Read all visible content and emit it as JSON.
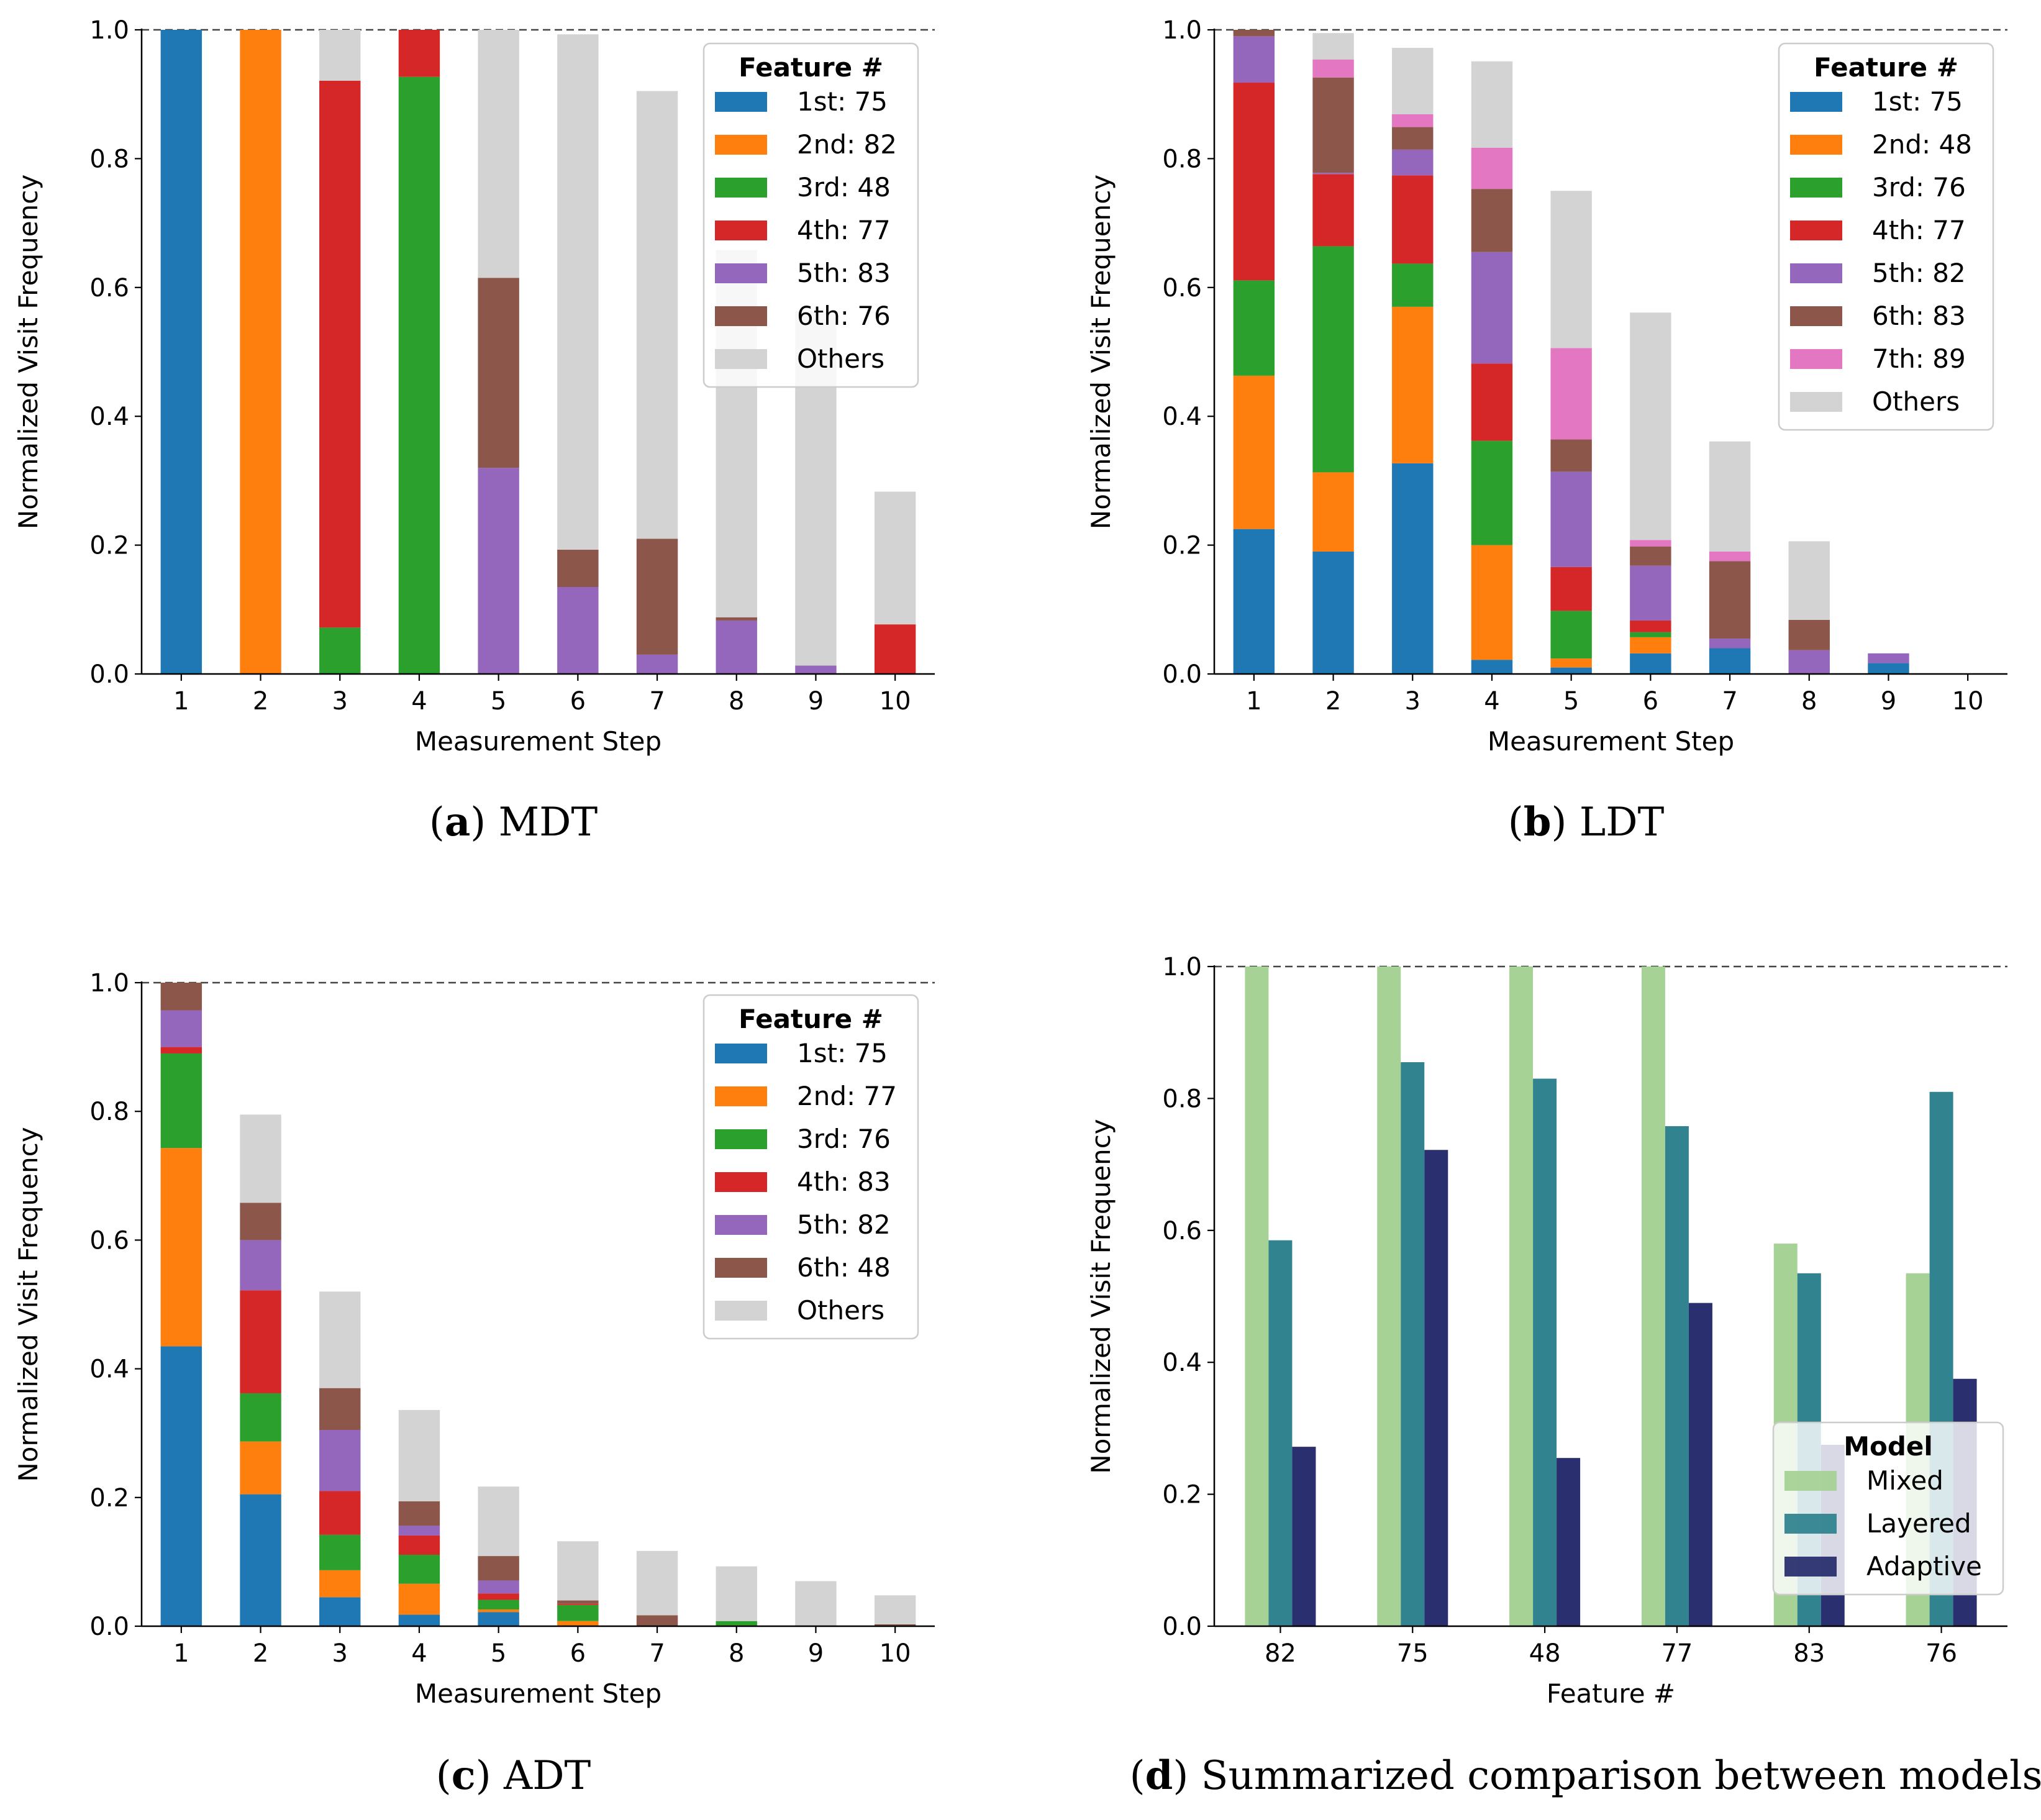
{
  "colors": {
    "tab_blue": "#1f77b4",
    "tab_orange": "#ff7f0e",
    "tab_green": "#2ca02c",
    "tab_red": "#d62728",
    "tab_purple": "#9467bd",
    "tab_brown": "#8c564b",
    "tab_pink": "#e377c2",
    "others_grey": "#d3d3d3",
    "mixed": "#a6d296",
    "layered": "#31848f",
    "adaptive": "#2a306f"
  },
  "chart_data": [
    {
      "id": "a",
      "type": "bar",
      "stacked": true,
      "caption_label": "(a)",
      "caption_text": "MDT",
      "xlabel": "Measurement Step",
      "ylabel": "Normalized Visit Frequency",
      "categories": [
        "1",
        "2",
        "3",
        "4",
        "5",
        "6",
        "7",
        "8",
        "9",
        "10"
      ],
      "ylim": [
        0,
        1.0
      ],
      "yticks": [
        "0.0",
        "0.2",
        "0.4",
        "0.6",
        "0.8",
        "1.0"
      ],
      "reference_line": 1.0,
      "legend_title": "Feature #",
      "legend_position": "top-right",
      "series": [
        {
          "name": "1st: 75",
          "color": "#1f77b4",
          "values": [
            1.0,
            0,
            0,
            0,
            0,
            0,
            0,
            0,
            0,
            0
          ]
        },
        {
          "name": "2nd: 82",
          "color": "#ff7f0e",
          "values": [
            0,
            1.0,
            0,
            0,
            0,
            0,
            0,
            0,
            0,
            0
          ]
        },
        {
          "name": "3rd: 48",
          "color": "#2ca02c",
          "values": [
            0,
            0,
            0.072,
            0.927,
            0,
            0,
            0,
            0,
            0,
            0
          ]
        },
        {
          "name": "4th: 77",
          "color": "#d62728",
          "values": [
            0,
            0,
            0.849,
            0.073,
            0,
            0,
            0,
            0,
            0,
            0.077
          ]
        },
        {
          "name": "5th: 83",
          "color": "#9467bd",
          "values": [
            0,
            0,
            0,
            0,
            0.32,
            0.135,
            0.03,
            0.083,
            0.013,
            0
          ]
        },
        {
          "name": "6th: 76",
          "color": "#8c564b",
          "values": [
            0,
            0,
            0,
            0,
            0.295,
            0.058,
            0.18,
            0.005,
            0,
            0
          ]
        },
        {
          "name": "Others",
          "color": "#d3d3d3",
          "values": [
            0,
            0,
            0.079,
            0,
            0.385,
            0.8,
            0.695,
            0.57,
            0.55,
            0.206
          ]
        }
      ]
    },
    {
      "id": "b",
      "type": "bar",
      "stacked": true,
      "caption_label": "(b)",
      "caption_text": "LDT",
      "xlabel": "Measurement Step",
      "ylabel": "Normalized Visit Frequency",
      "categories": [
        "1",
        "2",
        "3",
        "4",
        "5",
        "6",
        "7",
        "8",
        "9",
        "10"
      ],
      "ylim": [
        0,
        1.0
      ],
      "yticks": [
        "0.0",
        "0.2",
        "0.4",
        "0.6",
        "0.8",
        "1.0"
      ],
      "reference_line": 1.0,
      "legend_title": "Feature #",
      "legend_position": "top-right",
      "series": [
        {
          "name": "1st: 75",
          "color": "#1f77b4",
          "values": [
            0.225,
            0.19,
            0.327,
            0.022,
            0.01,
            0.032,
            0.04,
            0,
            0.017,
            0
          ]
        },
        {
          "name": "2nd: 48",
          "color": "#ff7f0e",
          "values": [
            0.238,
            0.123,
            0.243,
            0.178,
            0.014,
            0.025,
            0,
            0,
            0,
            0
          ]
        },
        {
          "name": "3rd: 76",
          "color": "#2ca02c",
          "values": [
            0.148,
            0.351,
            0.067,
            0.162,
            0.074,
            0.008,
            0,
            0,
            0,
            0
          ]
        },
        {
          "name": "4th: 77",
          "color": "#d62728",
          "values": [
            0.307,
            0.112,
            0.137,
            0.12,
            0.068,
            0.018,
            0,
            0,
            0,
            0
          ]
        },
        {
          "name": "5th: 82",
          "color": "#9467bd",
          "values": [
            0.072,
            0.002,
            0.04,
            0.173,
            0.148,
            0.085,
            0.015,
            0.037,
            0.015,
            0
          ]
        },
        {
          "name": "6th: 83",
          "color": "#8c564b",
          "values": [
            0.01,
            0.148,
            0.035,
            0.098,
            0.05,
            0.03,
            0.12,
            0.047,
            0,
            0
          ]
        },
        {
          "name": "7th: 89",
          "color": "#e377c2",
          "values": [
            0,
            0.028,
            0.02,
            0.064,
            0.142,
            0.01,
            0.015,
            0,
            0,
            0
          ]
        },
        {
          "name": "Others",
          "color": "#d3d3d3",
          "values": [
            0,
            0.041,
            0.103,
            0.134,
            0.244,
            0.353,
            0.171,
            0.122,
            0,
            0
          ]
        }
      ]
    },
    {
      "id": "c",
      "type": "bar",
      "stacked": true,
      "caption_label": "(c)",
      "caption_text": "ADT",
      "xlabel": "Measurement Step",
      "ylabel": "Normalized Visit Frequency",
      "categories": [
        "1",
        "2",
        "3",
        "4",
        "5",
        "6",
        "7",
        "8",
        "9",
        "10"
      ],
      "ylim": [
        0,
        1.0
      ],
      "yticks": [
        "0.0",
        "0.2",
        "0.4",
        "0.6",
        "0.8",
        "1.0"
      ],
      "reference_line": 1.0,
      "legend_title": "Feature #",
      "legend_position": "top-right",
      "series": [
        {
          "name": "1st: 75",
          "color": "#1f77b4",
          "values": [
            0.435,
            0.205,
            0.045,
            0.018,
            0.022,
            0,
            0,
            0,
            0,
            0
          ]
        },
        {
          "name": "2nd: 77",
          "color": "#ff7f0e",
          "values": [
            0.308,
            0.082,
            0.042,
            0.048,
            0.004,
            0.008,
            0,
            0,
            0,
            0
          ]
        },
        {
          "name": "3rd: 76",
          "color": "#2ca02c",
          "values": [
            0.147,
            0.075,
            0.055,
            0.045,
            0.015,
            0.025,
            0,
            0.008,
            0,
            0
          ]
        },
        {
          "name": "4th: 83",
          "color": "#d62728",
          "values": [
            0.01,
            0.16,
            0.068,
            0.03,
            0.01,
            0.002,
            0,
            0,
            0,
            0
          ]
        },
        {
          "name": "5th: 82",
          "color": "#9467bd",
          "values": [
            0.057,
            0.078,
            0.095,
            0.015,
            0.02,
            0,
            0,
            0,
            0,
            0
          ]
        },
        {
          "name": "6th: 48",
          "color": "#8c564b",
          "values": [
            0.043,
            0.058,
            0.065,
            0.038,
            0.038,
            0.005,
            0.017,
            0,
            0,
            0.003
          ]
        },
        {
          "name": "Others",
          "color": "#d3d3d3",
          "values": [
            0,
            0.137,
            0.15,
            0.142,
            0.108,
            0.092,
            0.1,
            0.085,
            0.07,
            0.045
          ]
        }
      ]
    },
    {
      "id": "d",
      "type": "bar",
      "stacked": false,
      "caption_label": "(d)",
      "caption_text": "Summarized comparison between models",
      "xlabel": "Feature #",
      "ylabel": "Normalized Visit Frequency",
      "categories": [
        "82",
        "75",
        "48",
        "77",
        "83",
        "76"
      ],
      "ylim": [
        0,
        1.0
      ],
      "yticks": [
        "0.0",
        "0.2",
        "0.4",
        "0.6",
        "0.8",
        "1.0"
      ],
      "reference_line": 1.0,
      "legend_title": "Model",
      "legend_position": "lower-right",
      "series": [
        {
          "name": "Mixed",
          "color": "#a6d296",
          "values": [
            1.0,
            1.0,
            1.0,
            1.0,
            0.58,
            0.535
          ]
        },
        {
          "name": "Layered",
          "color": "#31848f",
          "values": [
            0.585,
            0.855,
            0.83,
            0.758,
            0.535,
            0.81
          ]
        },
        {
          "name": "Adaptive",
          "color": "#2a306f",
          "values": [
            0.272,
            0.722,
            0.255,
            0.49,
            0.275,
            0.375
          ]
        }
      ]
    }
  ]
}
